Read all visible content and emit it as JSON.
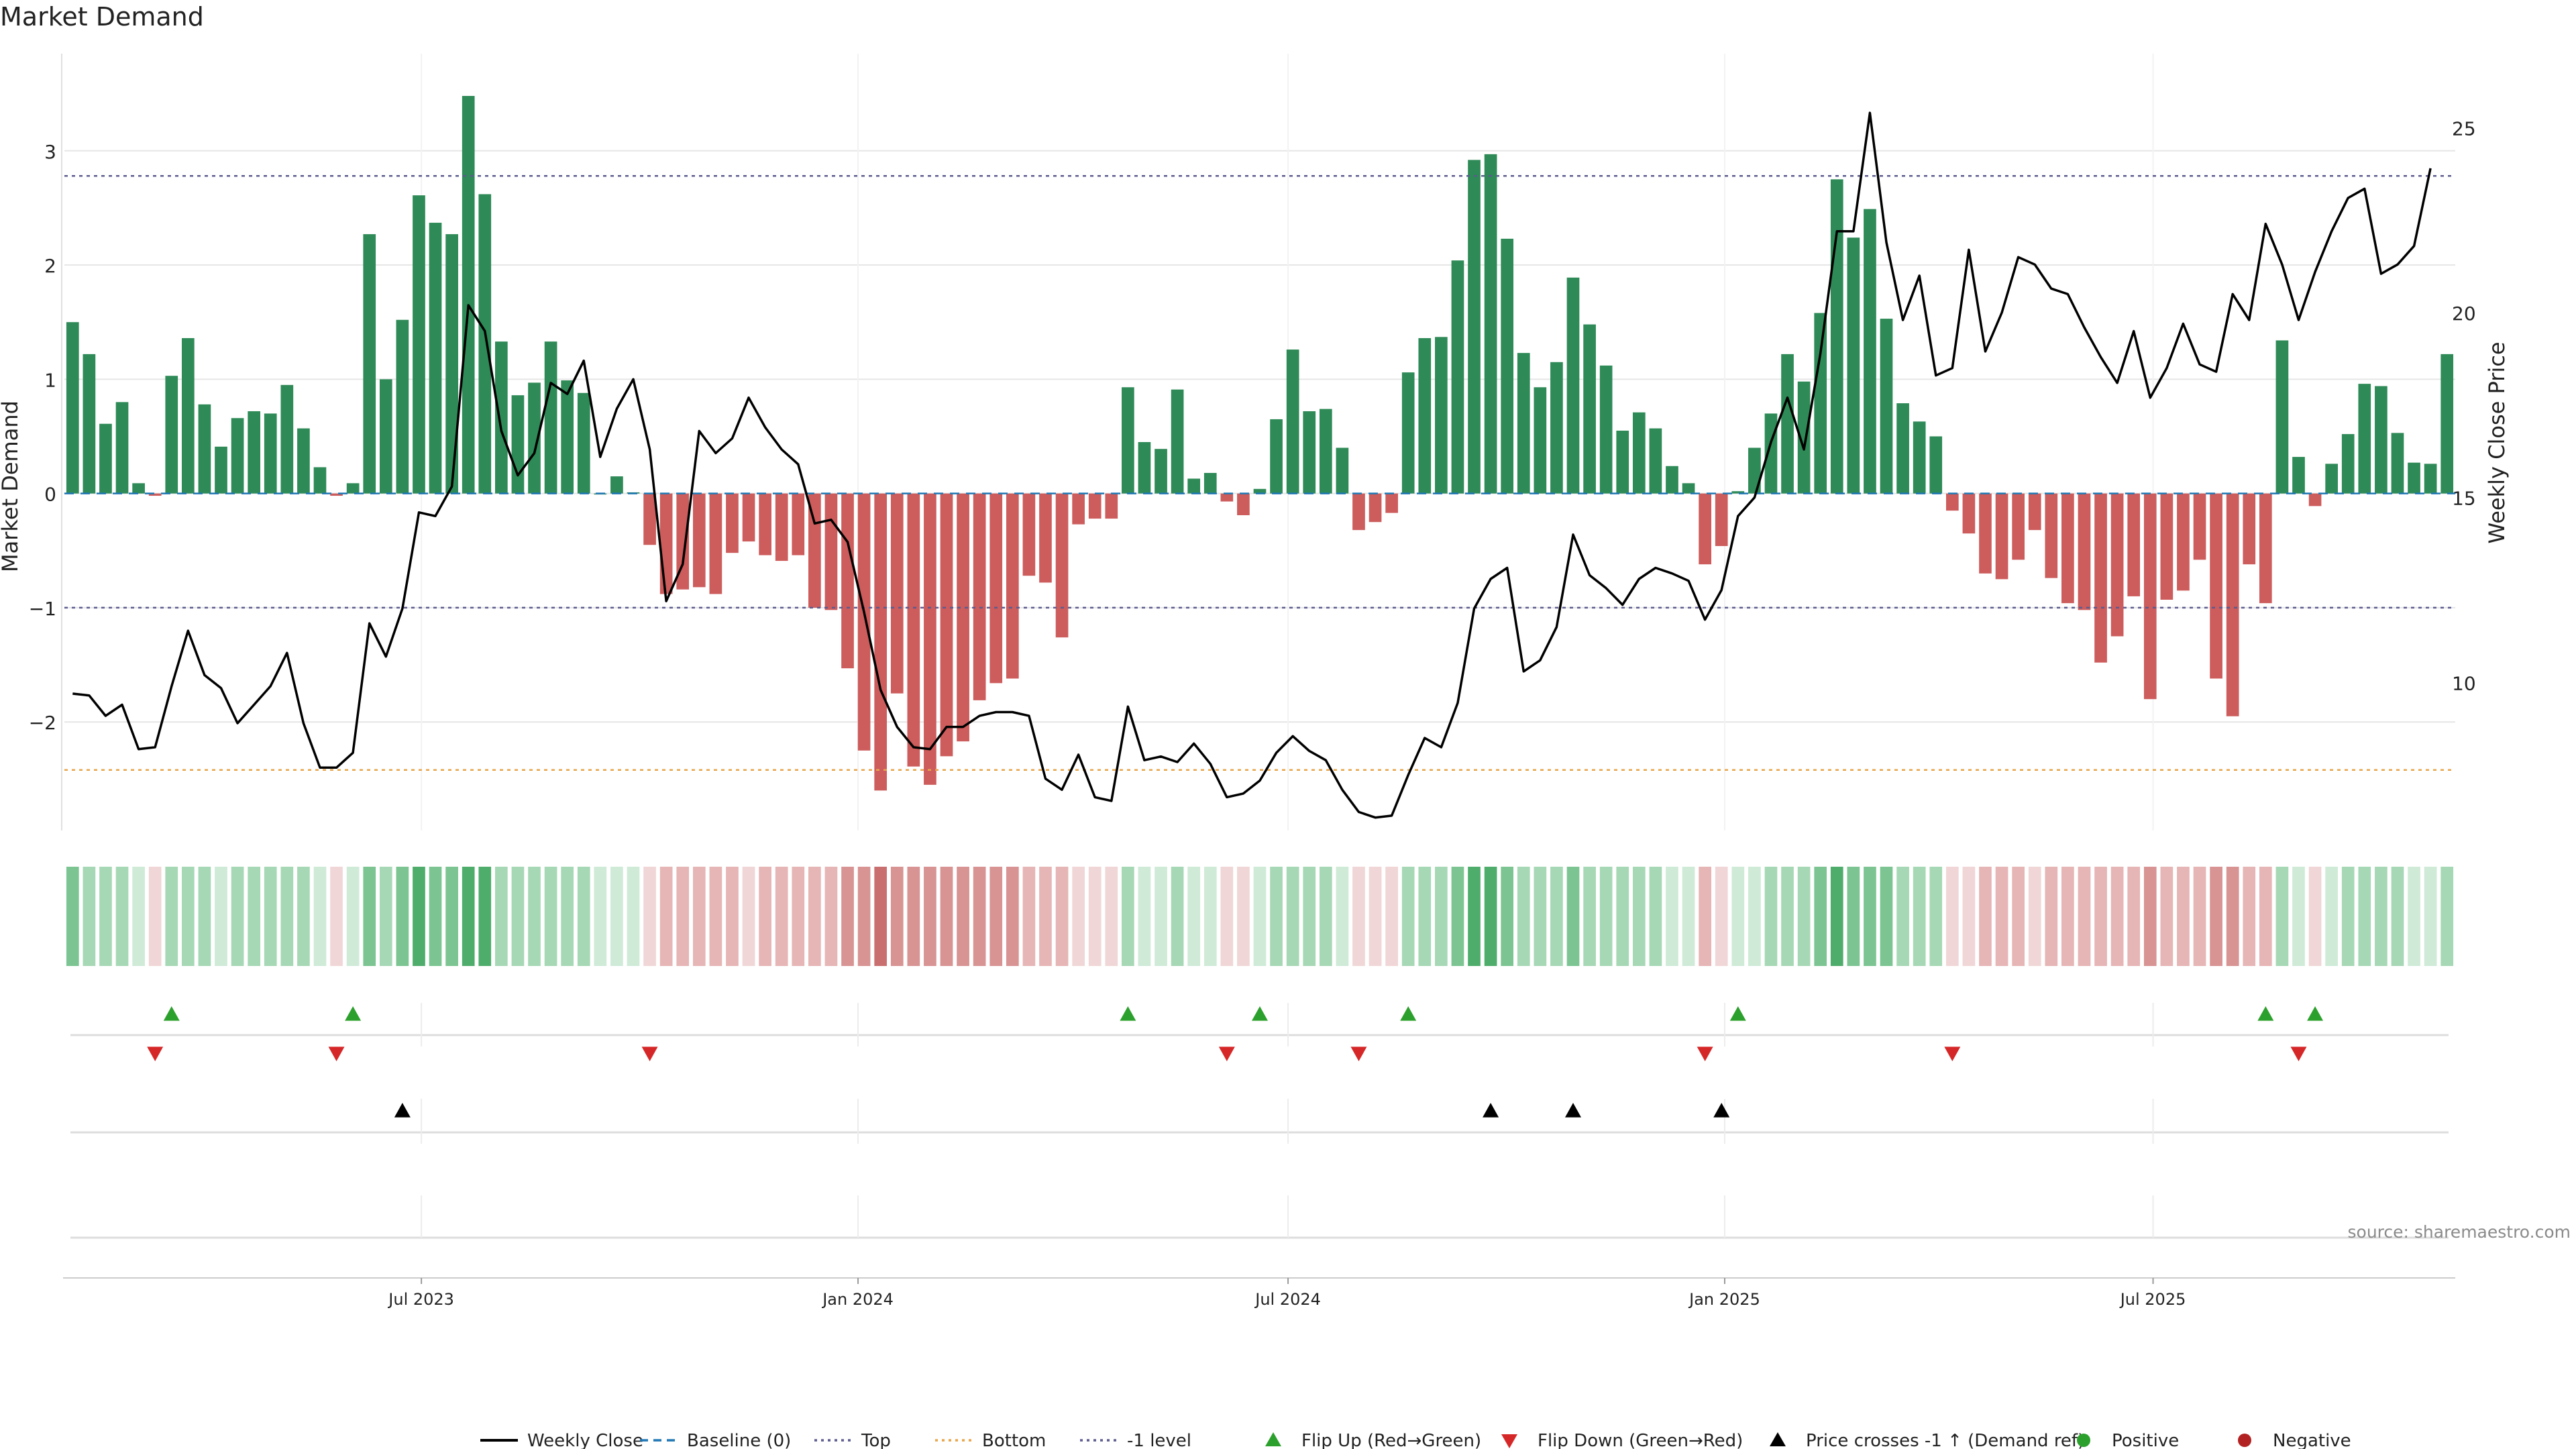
{
  "chart_data": {
    "type": "bar",
    "title": "Market Demand",
    "ylabel": "Market Demand",
    "y2label": "Weekly Close Price",
    "ylim": [
      -2.95,
      3.85
    ],
    "y2lim": [
      6.0,
      27.0
    ],
    "yticks": [
      3,
      2,
      1,
      0,
      -1,
      -2
    ],
    "ytick_labels": [
      "3",
      "2",
      "1",
      "0",
      "−1",
      "−2"
    ],
    "y2ticks": [
      25,
      20,
      15,
      10
    ],
    "y2tick_labels": [
      "25",
      "20",
      "15",
      "10"
    ],
    "reference_lines": {
      "top": 2.78,
      "bottom": -2.42,
      "minus_one": -1,
      "baseline": 0
    },
    "x_range": [
      0,
      144
    ],
    "x_ticks": [
      {
        "label": "Jul 2023",
        "index": 21.5
      },
      {
        "label": "Jan 2024",
        "index": 47.8
      },
      {
        "label": "Jul 2024",
        "index": 73.7
      },
      {
        "label": "Jan 2025",
        "index": 100.0
      },
      {
        "label": "Jul 2025",
        "index": 125.8
      }
    ],
    "series": [
      {
        "name": "Market Demand",
        "values": [
          1.5,
          1.22,
          0.61,
          0.8,
          0.09,
          -0.02,
          1.03,
          1.36,
          0.78,
          0.41,
          0.66,
          0.72,
          0.7,
          0.95,
          0.57,
          0.23,
          -0.02,
          0.09,
          2.27,
          1.0,
          1.52,
          2.61,
          2.37,
          2.27,
          3.48,
          2.62,
          1.33,
          0.86,
          0.97,
          1.33,
          0.99,
          0.88,
          0.0,
          0.15,
          0.01,
          -0.45,
          -0.88,
          -0.84,
          -0.82,
          -0.88,
          -0.52,
          -0.42,
          -0.54,
          -0.59,
          -0.54,
          -1.0,
          -1.02,
          -1.53,
          -2.25,
          -2.6,
          -1.75,
          -2.39,
          -2.55,
          -2.3,
          -2.17,
          -1.81,
          -1.66,
          -1.62,
          -0.72,
          -0.78,
          -1.26,
          -0.27,
          -0.22,
          -0.22,
          0.93,
          0.45,
          0.39,
          0.91,
          0.13,
          0.18,
          -0.07,
          -0.19,
          0.04,
          0.65,
          1.26,
          0.72,
          0.74,
          0.4,
          -0.32,
          -0.25,
          -0.17,
          1.06,
          1.36,
          1.37,
          2.04,
          2.92,
          2.97,
          2.23,
          1.23,
          0.93,
          1.15,
          1.89,
          1.48,
          1.12,
          0.55,
          0.71,
          0.57,
          0.24,
          0.09,
          -0.62,
          -0.46,
          0.02,
          0.4,
          0.7,
          1.22,
          0.98,
          1.58,
          2.75,
          2.24,
          2.49,
          1.53,
          0.79,
          0.63,
          0.5,
          -0.15,
          -0.35,
          -0.7,
          -0.75,
          -0.58,
          -0.32,
          -0.74,
          -0.96,
          -1.02,
          -1.48,
          -1.25,
          -0.9,
          -1.8,
          -0.93,
          -0.85,
          -0.58,
          -1.62,
          -1.95,
          -0.62,
          -0.96,
          1.34,
          0.32,
          -0.11,
          0.26,
          0.52,
          0.96,
          0.94,
          0.53,
          0.27,
          0.26,
          1.22
        ]
      },
      {
        "name": "Weekly Close",
        "values": [
          9.7,
          9.65,
          9.1,
          9.4,
          8.2,
          8.25,
          9.9,
          11.4,
          10.2,
          9.85,
          8.9,
          9.4,
          9.9,
          10.8,
          8.9,
          7.7,
          7.7,
          8.1,
          11.6,
          10.7,
          12.0,
          14.6,
          14.5,
          15.3,
          20.2,
          19.5,
          16.8,
          15.6,
          16.2,
          18.1,
          17.8,
          18.7,
          16.1,
          17.4,
          18.2,
          16.3,
          12.2,
          13.2,
          16.8,
          16.2,
          16.6,
          17.7,
          16.9,
          16.3,
          15.9,
          14.3,
          14.4,
          13.8,
          11.9,
          9.8,
          8.8,
          8.25,
          8.2,
          8.8,
          8.8,
          9.1,
          9.2,
          9.2,
          9.1,
          7.4,
          7.1,
          8.05,
          6.9,
          6.8,
          9.35,
          7.9,
          8.0,
          7.85,
          8.35,
          7.8,
          6.9,
          7.0,
          7.35,
          8.1,
          8.55,
          8.15,
          7.9,
          7.1,
          6.5,
          6.35,
          6.4,
          7.5,
          8.5,
          8.25,
          9.45,
          12.0,
          12.8,
          13.1,
          10.3,
          10.6,
          11.5,
          14.0,
          12.9,
          12.55,
          12.1,
          12.8,
          13.1,
          12.95,
          12.75,
          11.7,
          12.5,
          14.5,
          15.0,
          16.5,
          17.7,
          16.3,
          18.9,
          22.2,
          22.2,
          25.4,
          21.9,
          19.8,
          21.0,
          18.3,
          18.5,
          21.7,
          18.95,
          20.0,
          21.5,
          21.3,
          20.65,
          20.5,
          19.6,
          18.8,
          18.1,
          19.5,
          17.7,
          18.5,
          19.7,
          18.6,
          18.4,
          20.5,
          19.8,
          22.4,
          21.3,
          19.8,
          21.1,
          22.2,
          23.1,
          23.35,
          21.05,
          21.3,
          21.8,
          23.9
        ]
      }
    ],
    "markers": {
      "flip_up": [
        6,
        17,
        64,
        72,
        81,
        101,
        133,
        136
      ],
      "flip_down": [
        5,
        16,
        35,
        70,
        78,
        99,
        114,
        135
      ],
      "price_cross_up": [
        20,
        86,
        91,
        100
      ]
    },
    "legend": {
      "position": "bottom",
      "entries": [
        {
          "label": "Weekly Close",
          "style": "line",
          "color": "#000000"
        },
        {
          "label": "Baseline (0)",
          "style": "dashed",
          "color": "#1f77b4"
        },
        {
          "label": "Top",
          "style": "dotted",
          "color": "#5b5b8f"
        },
        {
          "label": "Bottom",
          "style": "dotted",
          "color": "#e8a54a"
        },
        {
          "label": "-1 level",
          "style": "dotted",
          "color": "#5b5b8f"
        },
        {
          "label": "Flip Up (Red→Green)",
          "style": "triangle-up",
          "color": "#2ca02c"
        },
        {
          "label": "Flip Down (Green→Red)",
          "style": "triangle-down",
          "color": "#d62728"
        },
        {
          "label": "Price crosses -1 ↑ (Demand ref)",
          "style": "triangle-up",
          "color": "#000000"
        },
        {
          "label": "Positive",
          "style": "dot",
          "color": "#2ca02c"
        },
        {
          "label": "Negative",
          "style": "dot",
          "color": "#b22222"
        }
      ]
    },
    "source": "source: sharemaestro.com"
  },
  "colors": {
    "positive_bar": "#2e8a57",
    "negative_bar": "#cd5c5c",
    "price_line": "#000000",
    "grid": "#e6e6e6"
  }
}
